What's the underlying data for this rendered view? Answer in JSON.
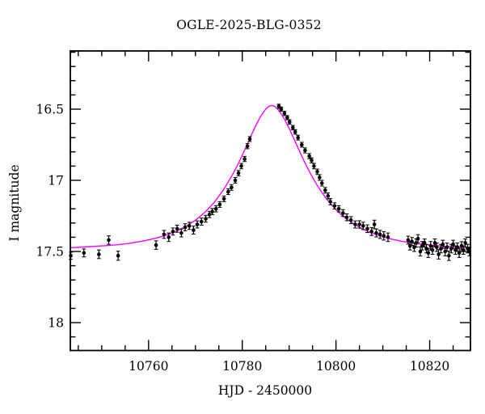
{
  "chart_data": {
    "type": "scatter",
    "title": "OGLE-2025-BLG-0352",
    "xlabel": "HJD - 2450000",
    "ylabel": "I magnitude",
    "xlim": [
      10743.3,
      10828.7
    ],
    "ylim": [
      18.196,
      16.091
    ],
    "y_axis_inverted": true,
    "grid": false,
    "x_major_ticks": [
      10760,
      10780,
      10800,
      10820
    ],
    "x_tick_labels": [
      "10760",
      "10780",
      "10800",
      "10820"
    ],
    "x_minor_step": 5,
    "y_major_ticks": [
      16.5,
      17.0,
      17.5,
      18.0
    ],
    "y_tick_labels": [
      "16.5",
      "17",
      "17.5",
      "18"
    ],
    "y_minor_step": 0.1,
    "model_color": "#ff00ff",
    "point_color": "#000000",
    "frame_color": "#000000",
    "model_curve": [
      [
        10743.3,
        17.474
      ],
      [
        10746,
        17.469
      ],
      [
        10749,
        17.463
      ],
      [
        10752,
        17.456
      ],
      [
        10755,
        17.447
      ],
      [
        10758,
        17.431
      ],
      [
        10760,
        17.419
      ],
      [
        10762,
        17.403
      ],
      [
        10764,
        17.382
      ],
      [
        10766,
        17.357
      ],
      [
        10768,
        17.323
      ],
      [
        10770,
        17.28
      ],
      [
        10772,
        17.225
      ],
      [
        10774,
        17.156
      ],
      [
        10776,
        17.067
      ],
      [
        10778,
        16.956
      ],
      [
        10779,
        16.893
      ],
      [
        10780,
        16.824
      ],
      [
        10781,
        16.752
      ],
      [
        10782,
        16.678
      ],
      [
        10783,
        16.608
      ],
      [
        10784,
        16.546
      ],
      [
        10785,
        16.5
      ],
      [
        10785.6,
        16.482
      ],
      [
        10786.3,
        16.474
      ],
      [
        10787,
        16.482
      ],
      [
        10787.6,
        16.503
      ],
      [
        10788,
        16.518
      ],
      [
        10789,
        16.57
      ],
      [
        10790,
        16.635
      ],
      [
        10791,
        16.707
      ],
      [
        10792,
        16.78
      ],
      [
        10793,
        16.852
      ],
      [
        10794,
        16.919
      ],
      [
        10795,
        16.98
      ],
      [
        10796,
        17.036
      ],
      [
        10797,
        17.086
      ],
      [
        10798,
        17.132
      ],
      [
        10799,
        17.171
      ],
      [
        10800,
        17.206
      ],
      [
        10801,
        17.237
      ],
      [
        10802,
        17.265
      ],
      [
        10804,
        17.311
      ],
      [
        10806,
        17.347
      ],
      [
        10808,
        17.375
      ],
      [
        10810,
        17.397
      ],
      [
        10812,
        17.414
      ],
      [
        10814,
        17.428
      ],
      [
        10816,
        17.439
      ],
      [
        10818,
        17.448
      ],
      [
        10820,
        17.455
      ],
      [
        10822,
        17.46
      ],
      [
        10824,
        17.465
      ],
      [
        10826,
        17.469
      ],
      [
        10828.7,
        17.473
      ]
    ],
    "points": [
      [
        10743.4,
        17.53,
        0.025
      ],
      [
        10746.2,
        17.51,
        0.028
      ],
      [
        10749.4,
        17.52,
        0.03
      ],
      [
        10751.5,
        17.42,
        0.03
      ],
      [
        10753.5,
        17.53,
        0.032
      ],
      [
        10761.6,
        17.455,
        0.03
      ],
      [
        10763.3,
        17.38,
        0.028
      ],
      [
        10764.3,
        17.4,
        0.03
      ],
      [
        10765.2,
        17.36,
        0.025
      ],
      [
        10766.1,
        17.34,
        0.025
      ],
      [
        10767.0,
        17.37,
        0.028
      ],
      [
        10767.8,
        17.33,
        0.025
      ],
      [
        10768.7,
        17.32,
        0.025
      ],
      [
        10769.6,
        17.35,
        0.028
      ],
      [
        10770.4,
        17.31,
        0.025
      ],
      [
        10771.3,
        17.29,
        0.025
      ],
      [
        10772.2,
        17.27,
        0.024
      ],
      [
        10773.0,
        17.24,
        0.022
      ],
      [
        10773.6,
        17.22,
        0.022
      ],
      [
        10774.4,
        17.2,
        0.022
      ],
      [
        10775.2,
        17.17,
        0.02
      ],
      [
        10776.1,
        17.13,
        0.02
      ],
      [
        10777.0,
        17.08,
        0.02
      ],
      [
        10777.7,
        17.05,
        0.02
      ],
      [
        10778.5,
        17.0,
        0.02
      ],
      [
        10779.2,
        16.95,
        0.019
      ],
      [
        10779.8,
        16.9,
        0.019
      ],
      [
        10780.5,
        16.85,
        0.018
      ],
      [
        10781.1,
        16.76,
        0.018
      ],
      [
        10781.6,
        16.71,
        0.017
      ],
      [
        10787.8,
        16.48,
        0.015
      ],
      [
        10788.3,
        16.5,
        0.015
      ],
      [
        10789.0,
        16.53,
        0.015
      ],
      [
        10789.6,
        16.56,
        0.015
      ],
      [
        10790.1,
        16.59,
        0.016
      ],
      [
        10790.8,
        16.63,
        0.016
      ],
      [
        10791.3,
        16.66,
        0.016
      ],
      [
        10791.9,
        16.7,
        0.017
      ],
      [
        10792.7,
        16.75,
        0.017
      ],
      [
        10793.4,
        16.79,
        0.018
      ],
      [
        10794.3,
        16.83,
        0.018
      ],
      [
        10794.8,
        16.86,
        0.018
      ],
      [
        10795.3,
        16.9,
        0.019
      ],
      [
        10796.0,
        16.94,
        0.019
      ],
      [
        10796.5,
        16.98,
        0.02
      ],
      [
        10797.0,
        17.02,
        0.02
      ],
      [
        10797.7,
        17.07,
        0.02
      ],
      [
        10798.3,
        17.11,
        0.021
      ],
      [
        10798.8,
        17.15,
        0.022
      ],
      [
        10799.7,
        17.18,
        0.022
      ],
      [
        10800.6,
        17.2,
        0.022
      ],
      [
        10801.5,
        17.23,
        0.024
      ],
      [
        10802.3,
        17.26,
        0.024
      ],
      [
        10803.2,
        17.28,
        0.025
      ],
      [
        10804.1,
        17.31,
        0.025
      ],
      [
        10805.0,
        17.31,
        0.026
      ],
      [
        10805.8,
        17.32,
        0.026
      ],
      [
        10806.7,
        17.34,
        0.027
      ],
      [
        10807.6,
        17.36,
        0.028
      ],
      [
        10808.2,
        17.31,
        0.03
      ],
      [
        10808.6,
        17.37,
        0.028
      ],
      [
        10809.4,
        17.38,
        0.029
      ],
      [
        10810.2,
        17.39,
        0.03
      ],
      [
        10811.1,
        17.4,
        0.03
      ],
      [
        10815.4,
        17.42,
        0.028
      ],
      [
        10815.8,
        17.46,
        0.03
      ],
      [
        10816.2,
        17.43,
        0.028
      ],
      [
        10816.7,
        17.47,
        0.03
      ],
      [
        10817.1,
        17.44,
        0.029
      ],
      [
        10817.5,
        17.41,
        0.028
      ],
      [
        10818.0,
        17.5,
        0.032
      ],
      [
        10818.4,
        17.46,
        0.03
      ],
      [
        10818.9,
        17.44,
        0.028
      ],
      [
        10819.3,
        17.48,
        0.03
      ],
      [
        10819.7,
        17.51,
        0.032
      ],
      [
        10820.2,
        17.46,
        0.03
      ],
      [
        10820.6,
        17.49,
        0.03
      ],
      [
        10821.1,
        17.44,
        0.028
      ],
      [
        10821.5,
        17.47,
        0.03
      ],
      [
        10821.9,
        17.52,
        0.033
      ],
      [
        10822.4,
        17.48,
        0.03
      ],
      [
        10822.8,
        17.45,
        0.029
      ],
      [
        10823.3,
        17.5,
        0.031
      ],
      [
        10823.7,
        17.47,
        0.029
      ],
      [
        10824.1,
        17.53,
        0.033
      ],
      [
        10824.6,
        17.48,
        0.03
      ],
      [
        10825.0,
        17.45,
        0.029
      ],
      [
        10825.5,
        17.49,
        0.03
      ],
      [
        10825.9,
        17.47,
        0.03
      ],
      [
        10826.3,
        17.51,
        0.032
      ],
      [
        10826.8,
        17.46,
        0.029
      ],
      [
        10827.2,
        17.49,
        0.03
      ],
      [
        10827.6,
        17.44,
        0.028
      ],
      [
        10828.1,
        17.48,
        0.03
      ],
      [
        10828.5,
        17.5,
        0.031
      ]
    ]
  }
}
